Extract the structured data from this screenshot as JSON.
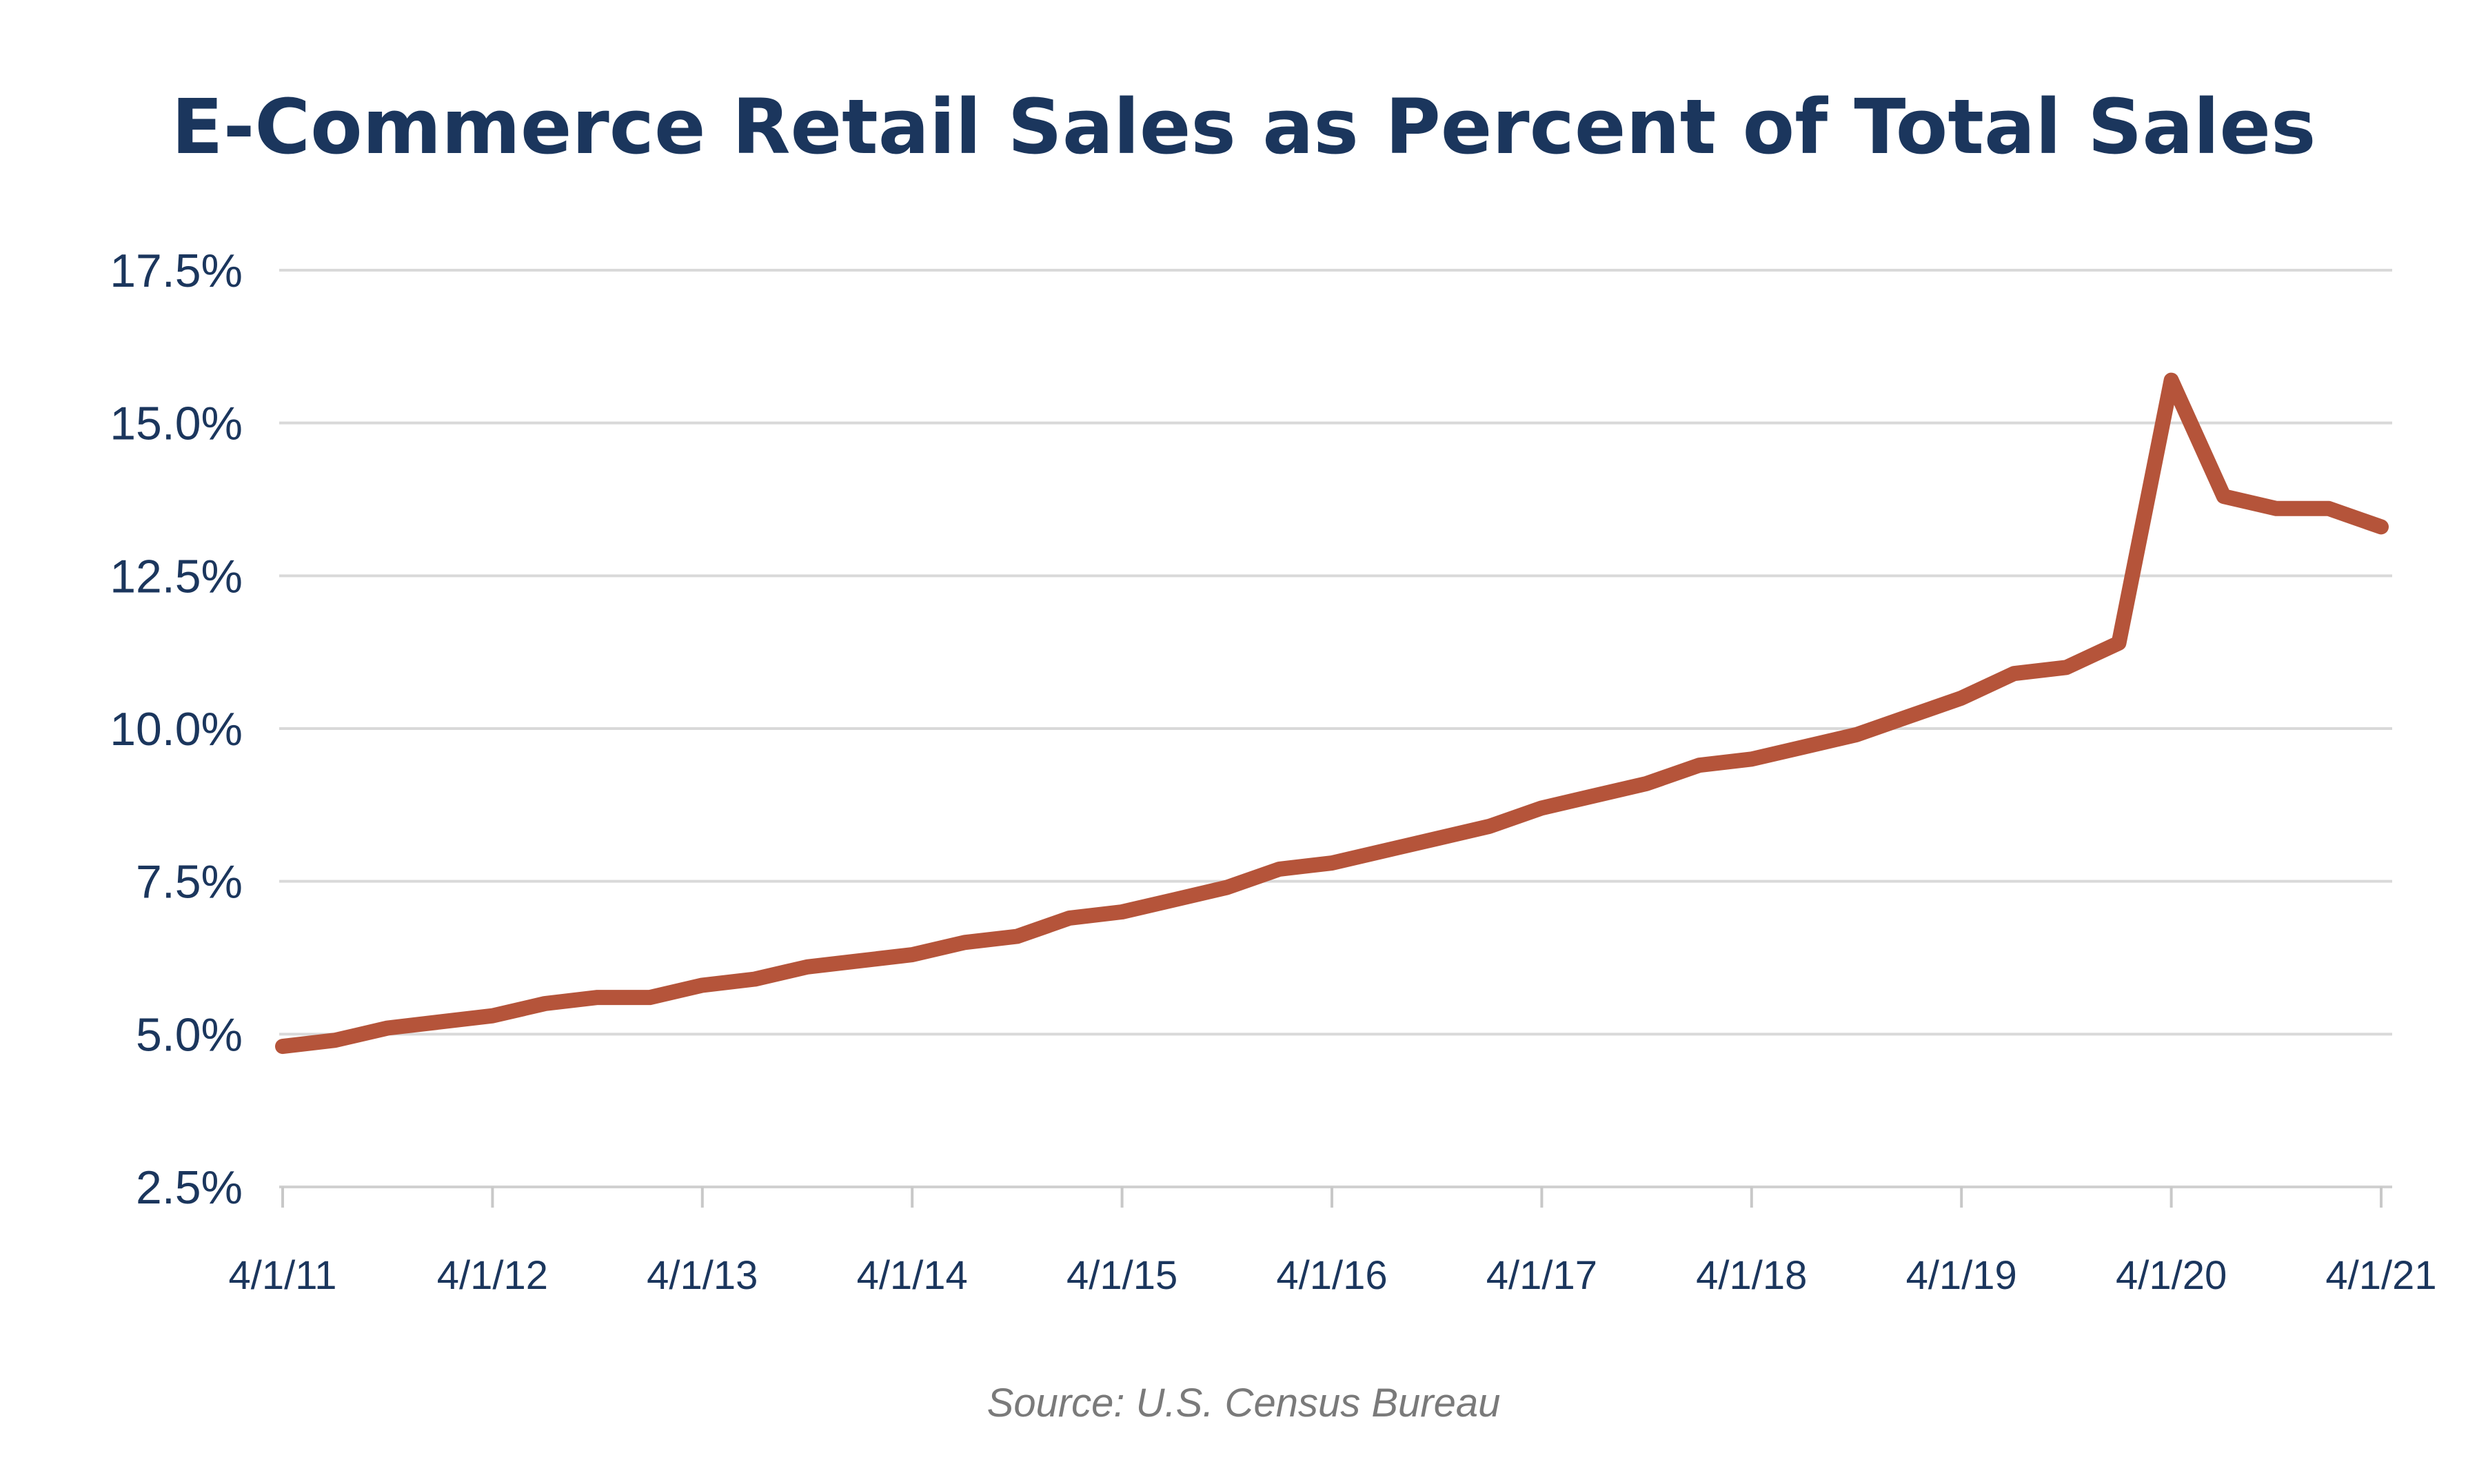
{
  "chart_data": {
    "type": "line",
    "title": "E-Commerce Retail Sales as Percent of Total Sales",
    "source": "Source: U.S. Census Bureau",
    "xlabel": "",
    "ylabel": "",
    "ylim": [
      2.5,
      17.5
    ],
    "y_ticks": [
      2.5,
      5.0,
      7.5,
      10.0,
      12.5,
      15.0,
      17.5
    ],
    "y_tick_labels": [
      "2.5%",
      "5.0%",
      "7.5%",
      "10.0%",
      "12.5%",
      "15.0%",
      "17.5%"
    ],
    "x_tick_labels": [
      "4/1/11",
      "4/1/12",
      "4/1/13",
      "4/1/14",
      "4/1/15",
      "4/1/16",
      "4/1/17",
      "4/1/18",
      "4/1/19",
      "4/1/20",
      "4/1/21"
    ],
    "grid": true,
    "legend": "none",
    "series_color": "#b5543a",
    "series": [
      {
        "x": [
          "4/1/11",
          "7/1/11",
          "10/1/11",
          "1/1/12",
          "4/1/12",
          "7/1/12",
          "10/1/12",
          "1/1/13",
          "4/1/13",
          "7/1/13",
          "10/1/13",
          "1/1/14",
          "4/1/14",
          "7/1/14",
          "10/1/14",
          "1/1/15",
          "4/1/15",
          "7/1/15",
          "10/1/15",
          "1/1/16",
          "4/1/16",
          "7/1/16",
          "10/1/16",
          "1/1/17",
          "4/1/17",
          "7/1/17",
          "10/1/17",
          "1/1/18",
          "4/1/18",
          "7/1/18",
          "10/1/18",
          "1/1/19",
          "4/1/19",
          "7/1/19",
          "10/1/19",
          "1/1/20",
          "4/1/20",
          "7/1/20",
          "10/1/20",
          "1/1/21",
          "4/1/21"
        ],
        "values": [
          4.8,
          4.9,
          5.1,
          5.2,
          5.3,
          5.5,
          5.6,
          5.6,
          5.8,
          5.9,
          6.1,
          6.2,
          6.3,
          6.5,
          6.6,
          6.9,
          7.0,
          7.2,
          7.4,
          7.7,
          7.8,
          8.0,
          8.2,
          8.4,
          8.7,
          8.9,
          9.1,
          9.4,
          9.5,
          9.7,
          9.9,
          10.2,
          10.5,
          10.9,
          11.0,
          11.4,
          15.7,
          13.8,
          13.6,
          13.6,
          13.3
        ]
      }
    ]
  }
}
